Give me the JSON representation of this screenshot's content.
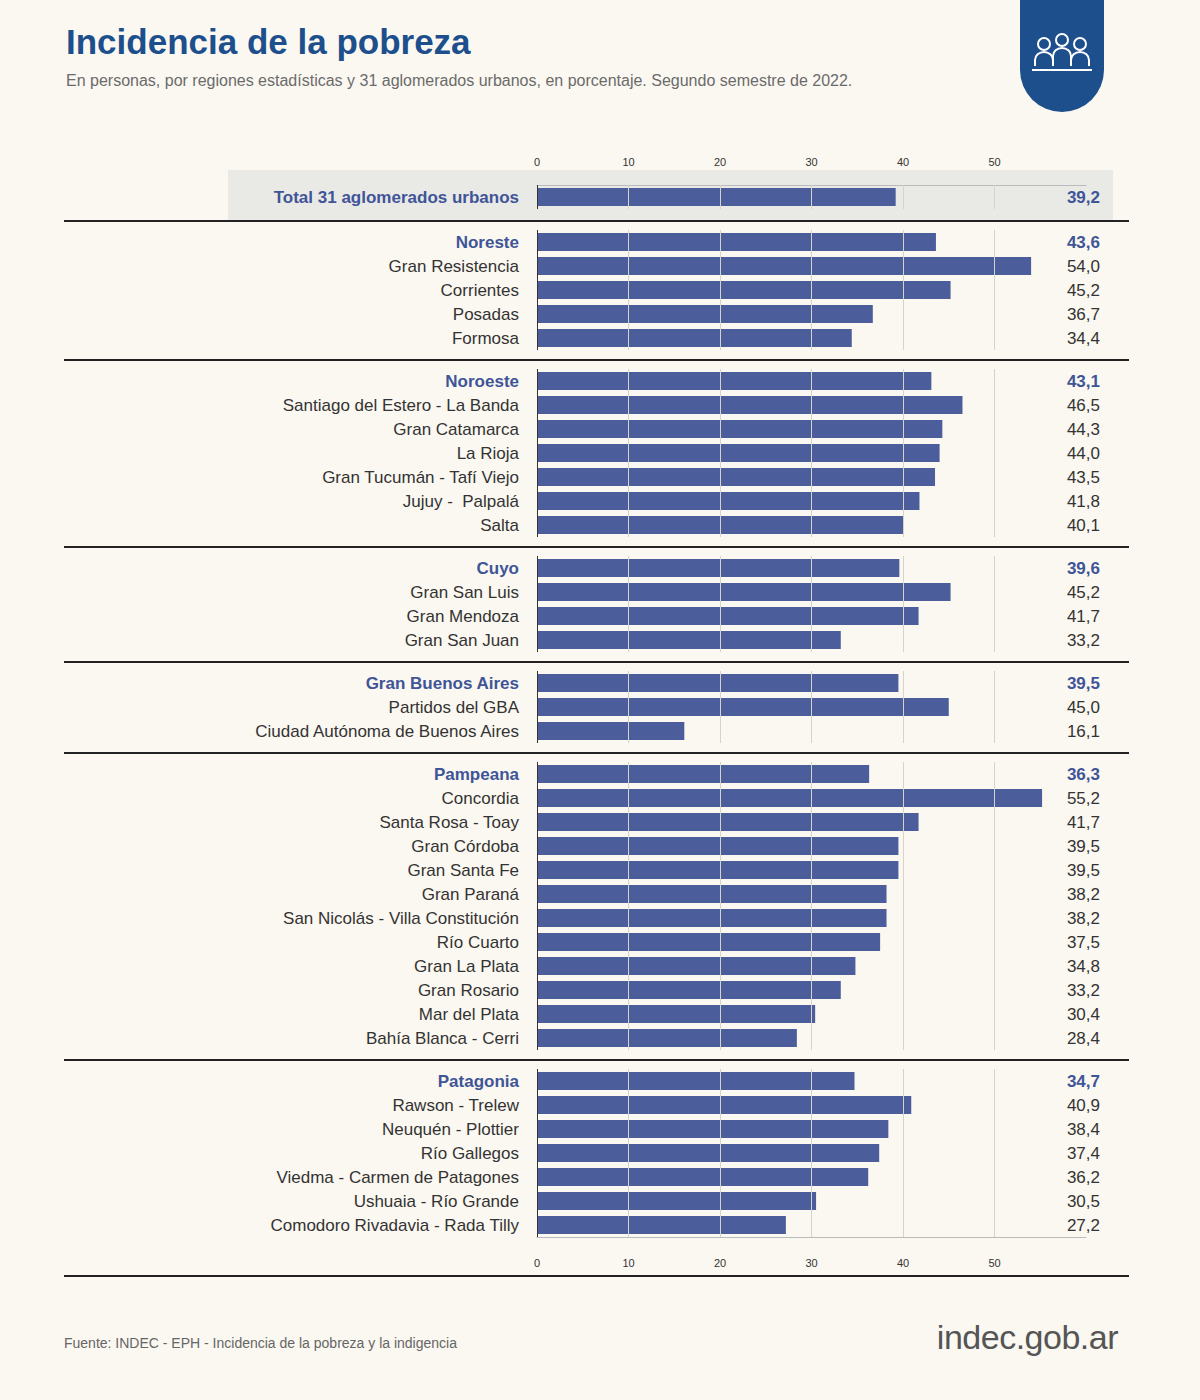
{
  "chart_data": {
    "type": "bar",
    "orientation": "horizontal",
    "title": "Incidencia de la pobreza",
    "subtitle": "En personas, por regiones estadísticas y 31 aglomerados urbanos, en porcentaje. Segundo semestre de 2022.",
    "source": "Fuente: INDEC - EPH - Incidencia de la pobreza y la indigencia",
    "logo": "indec.gob.ar",
    "color": "#4b5e9b",
    "xlim": [
      0,
      60
    ],
    "xticks": [
      0,
      10,
      20,
      30,
      40,
      50
    ],
    "grid": true,
    "data_labels": true,
    "total": {
      "category": "Total 31 aglomerados urbanos",
      "value": 39.2,
      "value_label": "39,2"
    },
    "groups": [
      {
        "region": "Noreste",
        "value": 43.6,
        "value_label": "43,6",
        "categories": [
          "Gran Resistencia",
          "Corrientes",
          "Posadas",
          "Formosa"
        ],
        "values": [
          54.0,
          45.2,
          36.7,
          34.4
        ],
        "value_labels": [
          "54,0",
          "45,2",
          "36,7",
          "34,4"
        ]
      },
      {
        "region": "Noroeste",
        "value": 43.1,
        "value_label": "43,1",
        "categories": [
          "Santiago del Estero - La Banda",
          "Gran Catamarca",
          "La Rioja",
          "Gran Tucumán - Tafí Viejo",
          "Jujuy -  Palpalá",
          "Salta"
        ],
        "values": [
          46.5,
          44.3,
          44.0,
          43.5,
          41.8,
          40.1
        ],
        "value_labels": [
          "46,5",
          "44,3",
          "44,0",
          "43,5",
          "41,8",
          "40,1"
        ]
      },
      {
        "region": "Cuyo",
        "value": 39.6,
        "value_label": "39,6",
        "categories": [
          "Gran San Luis",
          "Gran Mendoza",
          "Gran San Juan"
        ],
        "values": [
          45.2,
          41.7,
          33.2
        ],
        "value_labels": [
          "45,2",
          "41,7",
          "33,2"
        ]
      },
      {
        "region": "Gran Buenos Aires",
        "value": 39.5,
        "value_label": "39,5",
        "categories": [
          "Partidos del GBA",
          "Ciudad Autónoma de Buenos Aires"
        ],
        "values": [
          45.0,
          16.1
        ],
        "value_labels": [
          "45,0",
          "16,1"
        ]
      },
      {
        "region": "Pampeana",
        "value": 36.3,
        "value_label": "36,3",
        "categories": [
          "Concordia",
          "Santa Rosa - Toay",
          "Gran Córdoba",
          "Gran Santa Fe",
          "Gran Paraná",
          "San Nicolás - Villa Constitución",
          "Río Cuarto",
          "Gran La Plata",
          "Gran Rosario",
          "Mar del Plata",
          "Bahía Blanca - Cerri"
        ],
        "values": [
          55.2,
          41.7,
          39.5,
          39.5,
          38.2,
          38.2,
          37.5,
          34.8,
          33.2,
          30.4,
          28.4
        ],
        "value_labels": [
          "55,2",
          "41,7",
          "39,5",
          "39,5",
          "38,2",
          "38,2",
          "37,5",
          "34,8",
          "33,2",
          "30,4",
          "28,4"
        ]
      },
      {
        "region": "Patagonia",
        "value": 34.7,
        "value_label": "34,7",
        "categories": [
          "Rawson - Trelew",
          "Neuquén - Plottier",
          "Río Gallegos",
          "Viedma - Carmen de Patagones",
          "Ushuaia - Río Grande",
          "Comodoro Rivadavia - Rada Tilly"
        ],
        "values": [
          40.9,
          38.4,
          37.4,
          36.2,
          30.5,
          27.2
        ],
        "value_labels": [
          "40,9",
          "38,4",
          "37,4",
          "36,2",
          "30,5",
          "27,2"
        ]
      }
    ]
  }
}
